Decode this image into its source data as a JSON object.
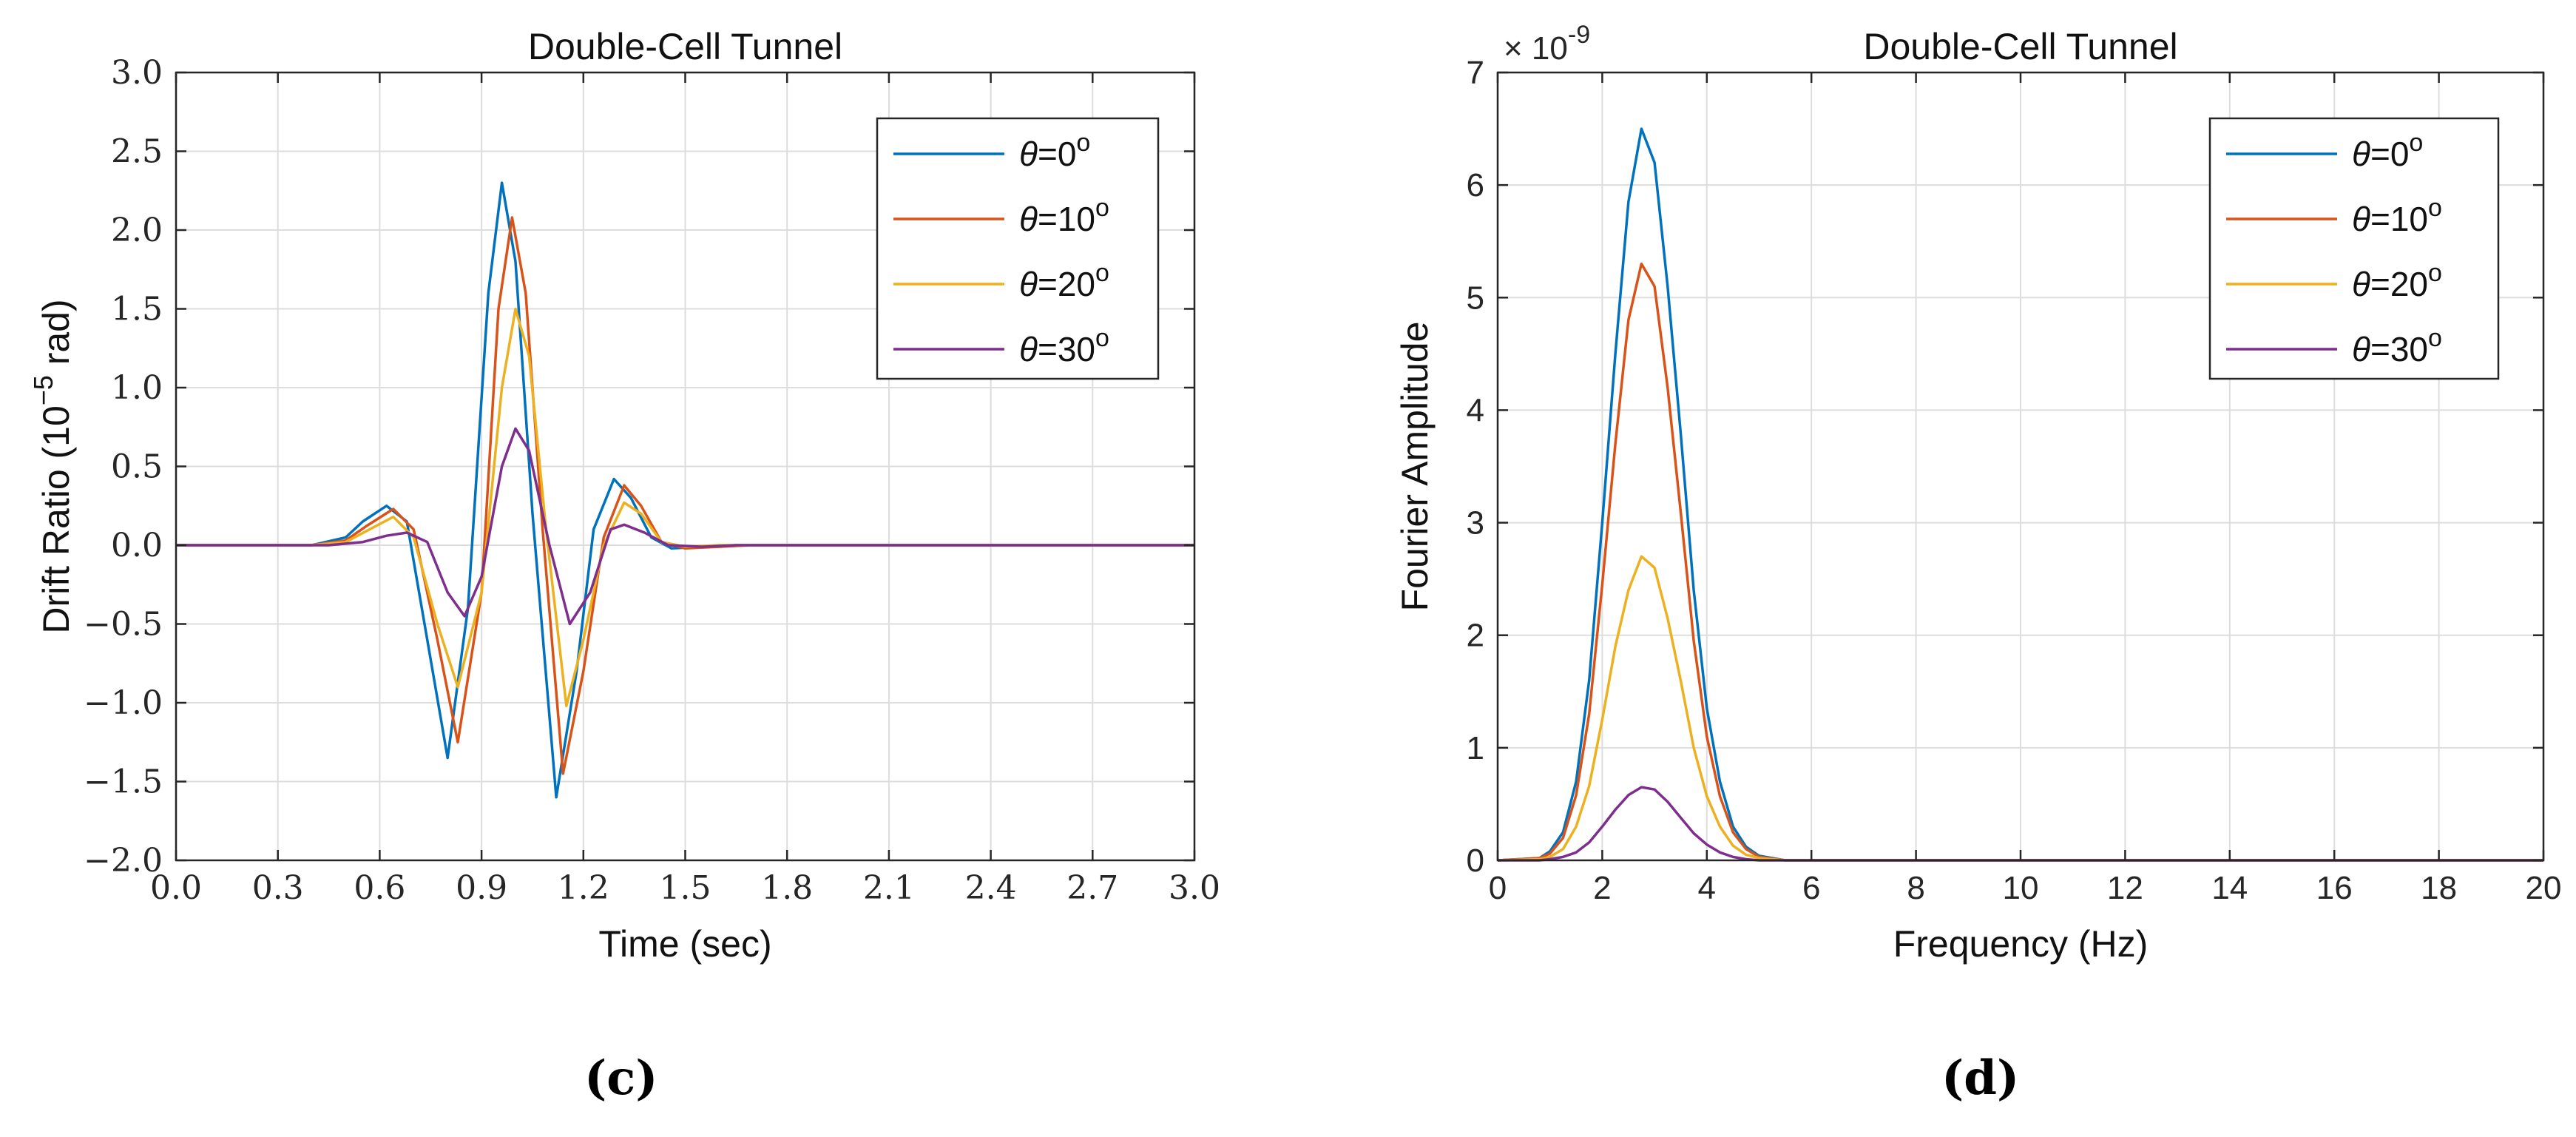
{
  "figure": {
    "panel_c_label": "(c)",
    "panel_d_label": "(d)"
  },
  "colors": {
    "theta0": "#0072BD",
    "theta10": "#D95319",
    "theta20": "#EDB120",
    "theta30": "#7E2F8E",
    "grid": "#DDDDDD",
    "axis": "#262626"
  },
  "chart_data": [
    {
      "type": "line",
      "title": "Double-Cell Tunnel",
      "xlabel": "Time (sec)",
      "ylabel_prefix": "Drift Ratio (10",
      "ylabel_exponent": "−5",
      "ylabel_suffix": " rad)",
      "xlim": [
        0,
        3
      ],
      "ylim": [
        -2,
        3
      ],
      "xticks": [
        0,
        0.3,
        0.6,
        0.9,
        1.2,
        1.5,
        1.8,
        2.1,
        2.4,
        2.7,
        3.0
      ],
      "xtick_labels": [
        "0.0",
        "0.3",
        "0.6",
        "0.9",
        "1.2",
        "1.5",
        "1.8",
        "2.1",
        "2.4",
        "2.7",
        "3.0"
      ],
      "yticks": [
        -2,
        -1.5,
        -1,
        -0.5,
        0,
        0.5,
        1,
        1.5,
        2,
        2.5,
        3
      ],
      "ytick_labels": [
        "−2.0",
        "−1.5",
        "−1.0",
        "−0.5",
        "0.0",
        "0.5",
        "1.0",
        "1.5",
        "2.0",
        "2.5",
        "3.0"
      ],
      "grid": true,
      "legend_position": "top-right",
      "series": [
        {
          "name": "θ=0°",
          "symbol": "θ",
          "text": "=0",
          "color_key": "theta0",
          "x": [
            0,
            0.4,
            0.5,
            0.55,
            0.62,
            0.68,
            0.74,
            0.8,
            0.86,
            0.92,
            0.96,
            1.0,
            1.05,
            1.12,
            1.18,
            1.23,
            1.29,
            1.34,
            1.4,
            1.46,
            1.55,
            1.65,
            3.0
          ],
          "y": [
            0,
            0,
            0.05,
            0.15,
            0.25,
            0.15,
            -0.6,
            -1.35,
            -0.4,
            1.6,
            2.3,
            1.8,
            0.2,
            -1.6,
            -0.8,
            0.1,
            0.42,
            0.3,
            0.05,
            -0.02,
            -0.01,
            0,
            0
          ]
        },
        {
          "name": "θ=10°",
          "symbol": "θ",
          "text": "=10",
          "color_key": "theta10",
          "x": [
            0,
            0.4,
            0.5,
            0.56,
            0.64,
            0.7,
            0.77,
            0.83,
            0.9,
            0.95,
            0.99,
            1.03,
            1.08,
            1.14,
            1.2,
            1.26,
            1.32,
            1.37,
            1.43,
            1.5,
            1.6,
            1.7,
            3.0
          ],
          "y": [
            0,
            0,
            0.03,
            0.12,
            0.23,
            0.1,
            -0.6,
            -1.25,
            -0.3,
            1.5,
            2.08,
            1.6,
            0.1,
            -1.45,
            -0.8,
            0.05,
            0.38,
            0.25,
            0.02,
            -0.02,
            -0.01,
            0,
            0
          ]
        },
        {
          "name": "θ=20°",
          "symbol": "θ",
          "text": "=20",
          "color_key": "theta20",
          "x": [
            0,
            0.4,
            0.5,
            0.57,
            0.64,
            0.7,
            0.77,
            0.83,
            0.9,
            0.96,
            1.0,
            1.04,
            1.09,
            1.15,
            1.2,
            1.26,
            1.32,
            1.37,
            1.43,
            1.5,
            1.6,
            1.7,
            3.0
          ],
          "y": [
            0,
            0,
            0.02,
            0.1,
            0.18,
            0.05,
            -0.5,
            -0.9,
            -0.3,
            1.0,
            1.5,
            1.2,
            0.1,
            -1.02,
            -0.6,
            0.0,
            0.27,
            0.2,
            0.02,
            -0.01,
            0,
            0,
            0
          ]
        },
        {
          "name": "θ=30°",
          "symbol": "θ",
          "text": "=30",
          "color_key": "theta30",
          "x": [
            0,
            0.45,
            0.55,
            0.62,
            0.68,
            0.74,
            0.8,
            0.85,
            0.9,
            0.96,
            1.0,
            1.04,
            1.1,
            1.16,
            1.22,
            1.28,
            1.32,
            1.38,
            1.45,
            1.55,
            1.65,
            3.0
          ],
          "y": [
            0,
            0,
            0.02,
            0.06,
            0.08,
            0.02,
            -0.3,
            -0.45,
            -0.2,
            0.5,
            0.74,
            0.6,
            0.0,
            -0.5,
            -0.3,
            0.1,
            0.13,
            0.08,
            0.0,
            -0.01,
            0,
            0
          ]
        }
      ]
    },
    {
      "type": "line",
      "title": "Double-Cell Tunnel",
      "xlabel": "Frequency (Hz)",
      "ylabel": "Fourier Amplitude",
      "exponent_base": "× 10",
      "exponent_power": "-9",
      "xlim": [
        0,
        20
      ],
      "ylim": [
        0,
        7
      ],
      "xticks": [
        0,
        2,
        4,
        6,
        8,
        10,
        12,
        14,
        16,
        18,
        20
      ],
      "xtick_labels": [
        "0",
        "2",
        "4",
        "6",
        "8",
        "10",
        "12",
        "14",
        "16",
        "18",
        "20"
      ],
      "yticks": [
        0,
        1,
        2,
        3,
        4,
        5,
        6,
        7
      ],
      "ytick_labels": [
        "0",
        "1",
        "2",
        "3",
        "4",
        "5",
        "6",
        "7"
      ],
      "grid": true,
      "legend_position": "top-right",
      "series": [
        {
          "name": "θ=0°",
          "symbol": "θ",
          "text": "=0",
          "color_key": "theta0",
          "x": [
            0,
            0.8,
            1.0,
            1.25,
            1.5,
            1.75,
            2.0,
            2.25,
            2.5,
            2.75,
            3.0,
            3.25,
            3.5,
            3.75,
            4.0,
            4.25,
            4.5,
            4.75,
            5.0,
            5.5,
            20
          ],
          "y": [
            0,
            0.02,
            0.08,
            0.25,
            0.7,
            1.6,
            3.0,
            4.5,
            5.85,
            6.5,
            6.2,
            5.1,
            3.8,
            2.4,
            1.35,
            0.7,
            0.3,
            0.12,
            0.04,
            0,
            0
          ]
        },
        {
          "name": "θ=10°",
          "symbol": "θ",
          "text": "=10",
          "color_key": "theta10",
          "x": [
            0,
            0.8,
            1.0,
            1.25,
            1.5,
            1.75,
            2.0,
            2.25,
            2.5,
            2.75,
            3.0,
            3.25,
            3.5,
            3.75,
            4.0,
            4.25,
            4.5,
            4.75,
            5.0,
            5.5,
            20
          ],
          "y": [
            0,
            0.02,
            0.06,
            0.2,
            0.58,
            1.3,
            2.45,
            3.7,
            4.8,
            5.3,
            5.1,
            4.2,
            3.1,
            1.95,
            1.1,
            0.57,
            0.25,
            0.1,
            0.03,
            0,
            0
          ]
        },
        {
          "name": "θ=20°",
          "symbol": "θ",
          "text": "=20",
          "color_key": "theta20",
          "x": [
            0,
            0.8,
            1.0,
            1.25,
            1.5,
            1.75,
            2.0,
            2.25,
            2.5,
            2.75,
            3.0,
            3.25,
            3.5,
            3.75,
            4.0,
            4.25,
            4.5,
            4.75,
            5.0,
            5.5,
            20
          ],
          "y": [
            0,
            0.01,
            0.03,
            0.1,
            0.3,
            0.66,
            1.25,
            1.9,
            2.4,
            2.7,
            2.6,
            2.15,
            1.6,
            1.0,
            0.57,
            0.3,
            0.13,
            0.05,
            0.02,
            0,
            0
          ]
        },
        {
          "name": "θ=30°",
          "symbol": "θ",
          "text": "=30",
          "color_key": "theta30",
          "x": [
            0,
            0.8,
            1.0,
            1.25,
            1.5,
            1.75,
            2.0,
            2.25,
            2.5,
            2.75,
            3.0,
            3.25,
            3.5,
            3.75,
            4.0,
            4.25,
            4.5,
            4.75,
            5.0,
            5.5,
            20
          ],
          "y": [
            0,
            0.0,
            0.01,
            0.03,
            0.07,
            0.16,
            0.3,
            0.45,
            0.58,
            0.65,
            0.63,
            0.52,
            0.38,
            0.24,
            0.14,
            0.07,
            0.03,
            0.01,
            0.0,
            0,
            0
          ]
        }
      ]
    }
  ]
}
